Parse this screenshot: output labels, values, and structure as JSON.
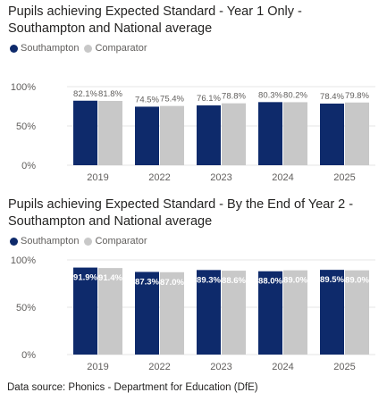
{
  "chart_data": [
    {
      "type": "bar",
      "title_lines": [
        "Pupils achieving Expected Standard - Year 1 Only -",
        "Southampton and National average"
      ],
      "categories": [
        "2019",
        "2022",
        "2023",
        "2024",
        "2025"
      ],
      "series": [
        {
          "name": "Southampton",
          "color": "#0e2a6b",
          "values": [
            82.1,
            74.5,
            76.1,
            80.3,
            78.4
          ],
          "labels": [
            "82.1%",
            "74.5%",
            "76.1%",
            "80.3%",
            "78.4%"
          ]
        },
        {
          "name": "Comparator",
          "color": "#c8c8c8",
          "values": [
            81.8,
            75.4,
            78.8,
            80.2,
            79.8
          ],
          "labels": [
            "81.8%",
            "75.4%",
            "78.8%",
            "80.2%",
            "79.8%"
          ]
        }
      ],
      "yticks": [
        "0%",
        "50%",
        "100%"
      ],
      "ylim": [
        0,
        100
      ],
      "label_position": "outside",
      "legend_position": "top-left",
      "grid": true
    },
    {
      "type": "bar",
      "title_lines": [
        "Pupils achieving Expected Standard - By the End of Year 2 -",
        "Southampton and National average"
      ],
      "categories": [
        "2019",
        "2022",
        "2023",
        "2024",
        "2025"
      ],
      "series": [
        {
          "name": "Southampton",
          "color": "#0e2a6b",
          "values": [
            91.9,
            87.3,
            89.3,
            88.0,
            89.5
          ],
          "labels": [
            "91.9%",
            "87.3%",
            "89.3%",
            "88.0%",
            "89.5%"
          ]
        },
        {
          "name": "Comparator",
          "color": "#c8c8c8",
          "values": [
            91.4,
            87.0,
            88.6,
            89.0,
            89.0
          ],
          "labels": [
            "91.4%",
            "87.0%",
            "88.6%",
            "89.0%",
            "89.0%"
          ]
        }
      ],
      "yticks": [
        "0%",
        "50%",
        "100%"
      ],
      "ylim": [
        0,
        100
      ],
      "label_position": "inside",
      "legend_position": "top-left",
      "grid": true
    }
  ],
  "source": "Data source: Phonics - Department for Education (DfE)"
}
